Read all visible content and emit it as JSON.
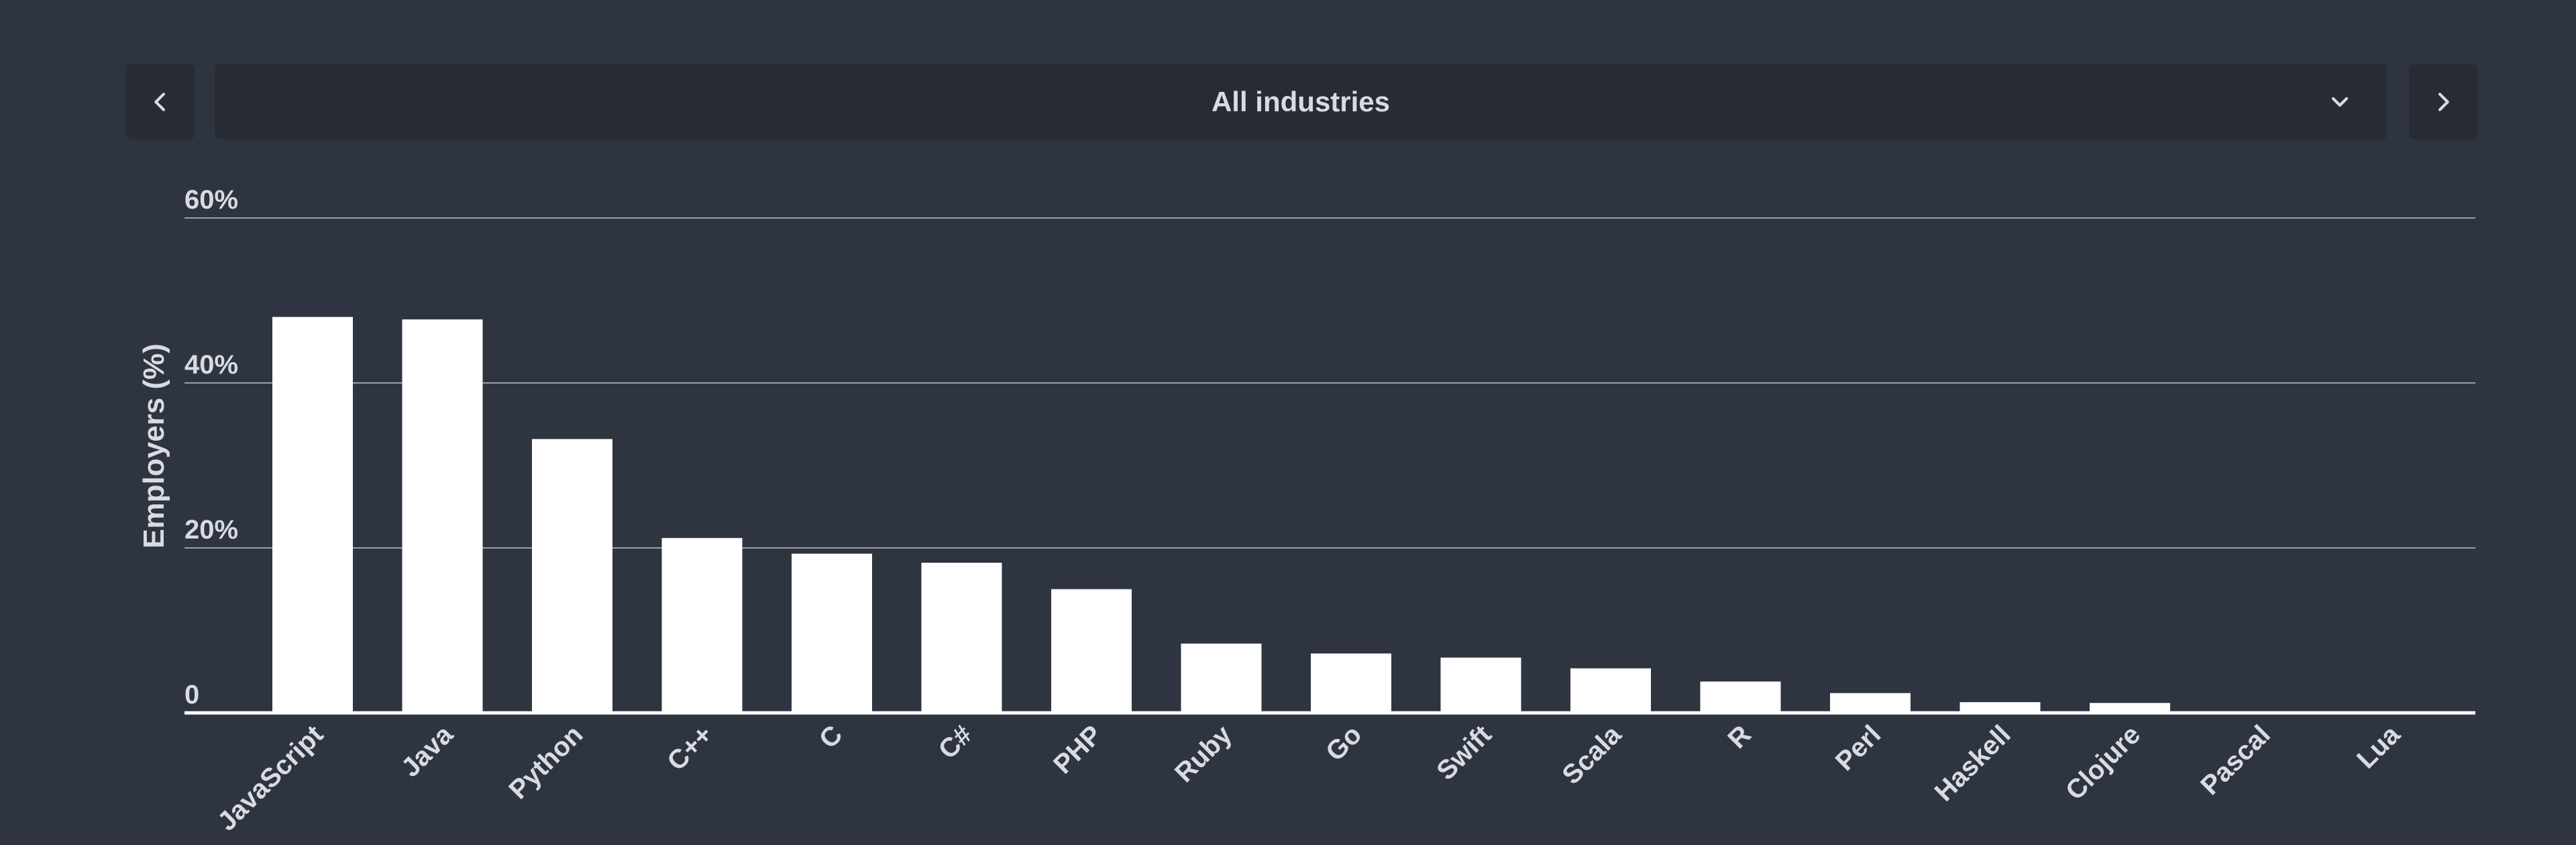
{
  "selector": {
    "label": "All industries",
    "prev_icon": "chevron-left-icon",
    "next_icon": "chevron-right-icon",
    "dropdown_icon": "chevron-down-icon"
  },
  "colors": {
    "background": "#2e3440",
    "control_bg": "#272c34",
    "bar": "#ffffff",
    "text": "#d8dce2",
    "grid": "#9aa0aa"
  },
  "chart_data": {
    "type": "bar",
    "ylabel": "Employers (%)",
    "xlabel": "",
    "ylim": [
      0,
      60
    ],
    "yticks": [
      0,
      20,
      40,
      60
    ],
    "ytick_labels": [
      "0",
      "20%",
      "40%",
      "60%"
    ],
    "grid": true,
    "categories": [
      "JavaScript",
      "Java",
      "Python",
      "C++",
      "C",
      "C#",
      "PHP",
      "Ruby",
      "Go",
      "Swift",
      "Scala",
      "R",
      "Perl",
      "Haskell",
      "Clojure",
      "Pascal",
      "Lua"
    ],
    "values": [
      48,
      47.7,
      33.2,
      21.2,
      19.3,
      18.2,
      15,
      8.4,
      7.2,
      6.7,
      5.4,
      3.8,
      2.4,
      1.3,
      1.2,
      0.1,
      0.1
    ]
  }
}
